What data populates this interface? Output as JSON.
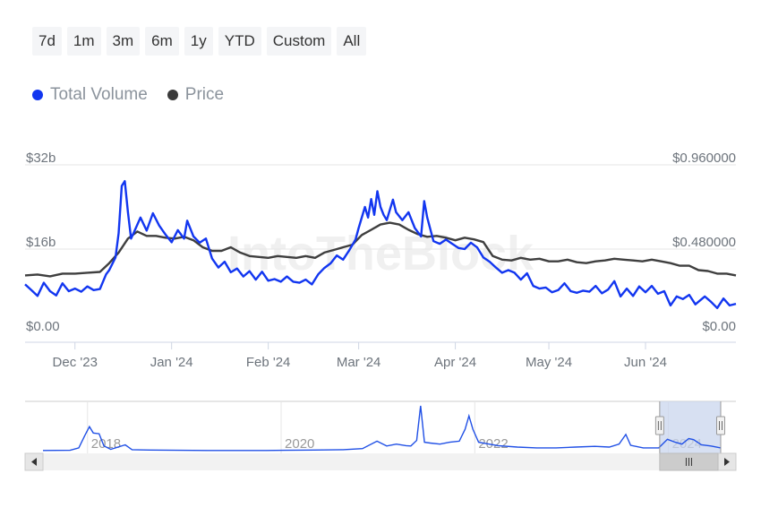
{
  "range_selector": {
    "buttons": [
      "7d",
      "1m",
      "3m",
      "6m",
      "1y",
      "YTD",
      "Custom",
      "All"
    ]
  },
  "legend": {
    "items": [
      {
        "label": "Total Volume",
        "color": "#1236f0"
      },
      {
        "label": "Price",
        "color": "#3a3a3a"
      }
    ]
  },
  "watermark": "IntoTheBlock",
  "colors": {
    "volume": "#1236f0",
    "price": "#3f3f3f",
    "navigator_line": "#2050e6",
    "navigator_window": "#c9d5ee",
    "gridline": "#e6e6e6",
    "axis_text": "#6d747c"
  },
  "chart_data": {
    "type": "line",
    "title": "",
    "x_tick_labels": [
      "Dec '23",
      "Jan '24",
      "Feb '24",
      "Mar '24",
      "Apr '24",
      "May '24",
      "Jun '24"
    ],
    "y_left": {
      "tick_labels": [
        "$0.00",
        "$16b",
        "$32b"
      ],
      "ticks": [
        0,
        16,
        32
      ],
      "range": [
        0,
        32
      ],
      "unit": "billion USD"
    },
    "y_right": {
      "tick_labels": [
        "$0.00",
        "$0.480000",
        "$0.960000"
      ],
      "ticks": [
        0,
        0.48,
        0.96
      ],
      "range": [
        0,
        0.96
      ],
      "unit": "USD"
    },
    "legend_position": "top-left",
    "x_start": "2023-11-15",
    "series": [
      {
        "name": "Total Volume",
        "axis": "left",
        "points": [
          [
            "2023-11-15",
            9.3
          ],
          [
            "2023-11-17",
            8.2
          ],
          [
            "2023-11-19",
            7.1
          ],
          [
            "2023-11-21",
            9.6
          ],
          [
            "2023-11-23",
            8.0
          ],
          [
            "2023-11-25",
            7.2
          ],
          [
            "2023-11-27",
            9.5
          ],
          [
            "2023-11-29",
            8.0
          ],
          [
            "2023-12-01",
            8.5
          ],
          [
            "2023-12-03",
            7.9
          ],
          [
            "2023-12-05",
            8.9
          ],
          [
            "2023-12-07",
            8.2
          ],
          [
            "2023-12-09",
            8.4
          ],
          [
            "2023-12-11",
            11.2
          ],
          [
            "2023-12-12",
            12.0
          ],
          [
            "2023-12-14",
            14.4
          ],
          [
            "2023-12-15",
            19.0
          ],
          [
            "2023-12-16",
            28.0
          ],
          [
            "2023-12-17",
            28.9
          ],
          [
            "2023-12-18",
            23.0
          ],
          [
            "2023-12-19",
            18.0
          ],
          [
            "2023-12-20",
            19.3
          ],
          [
            "2023-12-22",
            22.0
          ],
          [
            "2023-12-24",
            19.5
          ],
          [
            "2023-12-26",
            22.8
          ],
          [
            "2023-12-28",
            20.5
          ],
          [
            "2023-12-30",
            18.8
          ],
          [
            "2024-01-01",
            17.3
          ],
          [
            "2024-01-03",
            19.6
          ],
          [
            "2024-01-05",
            18.0
          ],
          [
            "2024-01-06",
            21.4
          ],
          [
            "2024-01-08",
            18.4
          ],
          [
            "2024-01-10",
            17.2
          ],
          [
            "2024-01-12",
            18.0
          ],
          [
            "2024-01-14",
            14.2
          ],
          [
            "2024-01-16",
            12.5
          ],
          [
            "2024-01-18",
            13.6
          ],
          [
            "2024-01-20",
            11.6
          ],
          [
            "2024-01-22",
            12.3
          ],
          [
            "2024-01-24",
            10.8
          ],
          [
            "2024-01-26",
            11.8
          ],
          [
            "2024-01-28",
            10.2
          ],
          [
            "2024-01-30",
            11.7
          ],
          [
            "2024-02-01",
            10.0
          ],
          [
            "2024-02-03",
            10.3
          ],
          [
            "2024-02-05",
            9.8
          ],
          [
            "2024-02-07",
            10.8
          ],
          [
            "2024-02-09",
            9.8
          ],
          [
            "2024-02-11",
            9.6
          ],
          [
            "2024-02-13",
            10.2
          ],
          [
            "2024-02-15",
            9.3
          ],
          [
            "2024-02-17",
            11.2
          ],
          [
            "2024-02-19",
            12.4
          ],
          [
            "2024-02-21",
            13.3
          ],
          [
            "2024-02-23",
            14.8
          ],
          [
            "2024-02-25",
            14.0
          ],
          [
            "2024-02-27",
            15.8
          ],
          [
            "2024-02-29",
            17.8
          ],
          [
            "2024-03-01",
            20.0
          ],
          [
            "2024-03-03",
            24.0
          ],
          [
            "2024-03-04",
            22.0
          ],
          [
            "2024-03-05",
            25.5
          ],
          [
            "2024-03-06",
            22.5
          ],
          [
            "2024-03-07",
            27.0
          ],
          [
            "2024-03-08",
            24.0
          ],
          [
            "2024-03-09",
            22.5
          ],
          [
            "2024-03-10",
            21.5
          ],
          [
            "2024-03-12",
            25.4
          ],
          [
            "2024-03-13",
            23.0
          ],
          [
            "2024-03-15",
            21.5
          ],
          [
            "2024-03-17",
            23.0
          ],
          [
            "2024-03-19",
            20.0
          ],
          [
            "2024-03-21",
            18.4
          ],
          [
            "2024-03-22",
            25.1
          ],
          [
            "2024-03-23",
            22.0
          ],
          [
            "2024-03-25",
            17.5
          ],
          [
            "2024-03-27",
            17.0
          ],
          [
            "2024-03-29",
            17.8
          ],
          [
            "2024-03-31",
            17.0
          ],
          [
            "2024-04-02",
            16.2
          ],
          [
            "2024-04-04",
            16.0
          ],
          [
            "2024-04-06",
            17.2
          ],
          [
            "2024-04-08",
            16.3
          ],
          [
            "2024-04-10",
            14.4
          ],
          [
            "2024-04-12",
            13.6
          ],
          [
            "2024-04-14",
            12.5
          ],
          [
            "2024-04-16",
            11.5
          ],
          [
            "2024-04-18",
            12.0
          ],
          [
            "2024-04-20",
            11.5
          ],
          [
            "2024-04-22",
            10.2
          ],
          [
            "2024-04-24",
            11.4
          ],
          [
            "2024-04-26",
            9.0
          ],
          [
            "2024-04-28",
            8.5
          ],
          [
            "2024-04-30",
            8.7
          ],
          [
            "2024-05-02",
            7.8
          ],
          [
            "2024-05-04",
            8.2
          ],
          [
            "2024-05-06",
            9.5
          ],
          [
            "2024-05-08",
            8.0
          ],
          [
            "2024-05-10",
            7.7
          ],
          [
            "2024-05-12",
            8.1
          ],
          [
            "2024-05-14",
            7.9
          ],
          [
            "2024-05-16",
            9.0
          ],
          [
            "2024-05-18",
            7.6
          ],
          [
            "2024-05-20",
            8.3
          ],
          [
            "2024-05-22",
            9.9
          ],
          [
            "2024-05-24",
            7.0
          ],
          [
            "2024-05-26",
            8.5
          ],
          [
            "2024-05-28",
            7.1
          ],
          [
            "2024-05-30",
            8.9
          ],
          [
            "2024-06-01",
            7.8
          ],
          [
            "2024-06-03",
            9.0
          ],
          [
            "2024-06-05",
            7.5
          ],
          [
            "2024-06-07",
            8.0
          ],
          [
            "2024-06-09",
            5.3
          ],
          [
            "2024-06-11",
            7.0
          ],
          [
            "2024-06-13",
            6.5
          ],
          [
            "2024-06-15",
            7.3
          ],
          [
            "2024-06-17",
            5.5
          ],
          [
            "2024-06-20",
            7.0
          ],
          [
            "2024-06-22",
            6.0
          ],
          [
            "2024-06-24",
            4.8
          ],
          [
            "2024-06-26",
            6.6
          ],
          [
            "2024-06-28",
            5.3
          ],
          [
            "2024-06-30",
            5.6
          ]
        ]
      },
      {
        "name": "Price",
        "axis": "right",
        "points": [
          [
            "2023-11-15",
            0.33
          ],
          [
            "2023-11-19",
            0.335
          ],
          [
            "2023-11-23",
            0.325
          ],
          [
            "2023-11-27",
            0.34
          ],
          [
            "2023-12-01",
            0.34
          ],
          [
            "2023-12-05",
            0.345
          ],
          [
            "2023-12-09",
            0.35
          ],
          [
            "2023-12-12",
            0.4
          ],
          [
            "2023-12-15",
            0.46
          ],
          [
            "2023-12-18",
            0.54
          ],
          [
            "2023-12-21",
            0.58
          ],
          [
            "2023-12-24",
            0.555
          ],
          [
            "2023-12-27",
            0.555
          ],
          [
            "2023-12-30",
            0.545
          ],
          [
            "2024-01-02",
            0.54
          ],
          [
            "2024-01-05",
            0.55
          ],
          [
            "2024-01-08",
            0.53
          ],
          [
            "2024-01-11",
            0.49
          ],
          [
            "2024-01-14",
            0.47
          ],
          [
            "2024-01-17",
            0.47
          ],
          [
            "2024-01-20",
            0.49
          ],
          [
            "2024-01-23",
            0.46
          ],
          [
            "2024-01-26",
            0.44
          ],
          [
            "2024-01-29",
            0.435
          ],
          [
            "2024-02-01",
            0.43
          ],
          [
            "2024-02-04",
            0.44
          ],
          [
            "2024-02-07",
            0.435
          ],
          [
            "2024-02-10",
            0.43
          ],
          [
            "2024-02-13",
            0.44
          ],
          [
            "2024-02-16",
            0.43
          ],
          [
            "2024-02-19",
            0.46
          ],
          [
            "2024-02-22",
            0.475
          ],
          [
            "2024-02-25",
            0.49
          ],
          [
            "2024-02-28",
            0.505
          ],
          [
            "2024-03-02",
            0.56
          ],
          [
            "2024-03-05",
            0.59
          ],
          [
            "2024-03-08",
            0.62
          ],
          [
            "2024-03-11",
            0.63
          ],
          [
            "2024-03-14",
            0.62
          ],
          [
            "2024-03-17",
            0.59
          ],
          [
            "2024-03-20",
            0.565
          ],
          [
            "2024-03-23",
            0.55
          ],
          [
            "2024-03-26",
            0.555
          ],
          [
            "2024-03-29",
            0.545
          ],
          [
            "2024-04-01",
            0.53
          ],
          [
            "2024-04-04",
            0.545
          ],
          [
            "2024-04-07",
            0.535
          ],
          [
            "2024-04-10",
            0.52
          ],
          [
            "2024-04-13",
            0.44
          ],
          [
            "2024-04-16",
            0.42
          ],
          [
            "2024-04-19",
            0.415
          ],
          [
            "2024-04-22",
            0.43
          ],
          [
            "2024-04-25",
            0.42
          ],
          [
            "2024-04-28",
            0.425
          ],
          [
            "2024-05-01",
            0.41
          ],
          [
            "2024-05-04",
            0.41
          ],
          [
            "2024-05-07",
            0.42
          ],
          [
            "2024-05-10",
            0.405
          ],
          [
            "2024-05-13",
            0.4
          ],
          [
            "2024-05-16",
            0.41
          ],
          [
            "2024-05-19",
            0.415
          ],
          [
            "2024-05-22",
            0.425
          ],
          [
            "2024-05-25",
            0.42
          ],
          [
            "2024-05-28",
            0.415
          ],
          [
            "2024-05-31",
            0.41
          ],
          [
            "2024-06-03",
            0.42
          ],
          [
            "2024-06-06",
            0.41
          ],
          [
            "2024-06-09",
            0.4
          ],
          [
            "2024-06-12",
            0.385
          ],
          [
            "2024-06-15",
            0.385
          ],
          [
            "2024-06-18",
            0.36
          ],
          [
            "2024-06-21",
            0.355
          ],
          [
            "2024-06-24",
            0.34
          ],
          [
            "2024-06-27",
            0.34
          ],
          [
            "2024-06-30",
            0.33
          ]
        ]
      }
    ]
  },
  "navigator": {
    "year_labels": [
      "2018",
      "2020",
      "2022",
      "2024"
    ],
    "year_values": [
      2017.96,
      2019.96,
      2021.96,
      2023.96
    ],
    "range": [
      2017.5,
      2024.5
    ],
    "window_range": [
      2023.87,
      2024.5
    ],
    "series": [
      {
        "name": "Total Volume",
        "points": [
          [
            2017.5,
            0.3
          ],
          [
            2017.78,
            0.35
          ],
          [
            2017.87,
            1.0
          ],
          [
            2017.93,
            4.2
          ],
          [
            2017.98,
            6.7
          ],
          [
            2018.02,
            5.0
          ],
          [
            2018.08,
            4.8
          ],
          [
            2018.13,
            1.5
          ],
          [
            2018.2,
            0.6
          ],
          [
            2018.35,
            1.8
          ],
          [
            2018.42,
            0.5
          ],
          [
            2018.6,
            0.4
          ],
          [
            2018.9,
            0.35
          ],
          [
            2019.2,
            0.3
          ],
          [
            2019.5,
            0.3
          ],
          [
            2019.8,
            0.3
          ],
          [
            2020.0,
            0.35
          ],
          [
            2020.3,
            0.4
          ],
          [
            2020.6,
            0.5
          ],
          [
            2020.8,
            0.8
          ],
          [
            2020.95,
            2.8
          ],
          [
            2021.05,
            1.5
          ],
          [
            2021.15,
            2.0
          ],
          [
            2021.25,
            1.6
          ],
          [
            2021.3,
            1.5
          ],
          [
            2021.36,
            3.0
          ],
          [
            2021.4,
            12.3
          ],
          [
            2021.44,
            2.5
          ],
          [
            2021.5,
            2.3
          ],
          [
            2021.6,
            2.0
          ],
          [
            2021.7,
            2.5
          ],
          [
            2021.8,
            2.8
          ],
          [
            2021.86,
            6.0
          ],
          [
            2021.9,
            9.6
          ],
          [
            2021.94,
            6.0
          ],
          [
            2022.0,
            2.5
          ],
          [
            2022.2,
            1.6
          ],
          [
            2022.4,
            1.2
          ],
          [
            2022.6,
            1.0
          ],
          [
            2022.8,
            1.0
          ],
          [
            2023.0,
            1.2
          ],
          [
            2023.2,
            1.4
          ],
          [
            2023.35,
            1.2
          ],
          [
            2023.45,
            2.0
          ],
          [
            2023.52,
            4.6
          ],
          [
            2023.57,
            1.7
          ],
          [
            2023.7,
            1.0
          ],
          [
            2023.86,
            1.0
          ],
          [
            2023.95,
            3.3
          ],
          [
            2024.03,
            2.5
          ],
          [
            2024.1,
            2.0
          ],
          [
            2024.17,
            3.5
          ],
          [
            2024.22,
            3.2
          ],
          [
            2024.3,
            1.8
          ],
          [
            2024.4,
            1.5
          ],
          [
            2024.5,
            1.0
          ]
        ]
      }
    ]
  }
}
